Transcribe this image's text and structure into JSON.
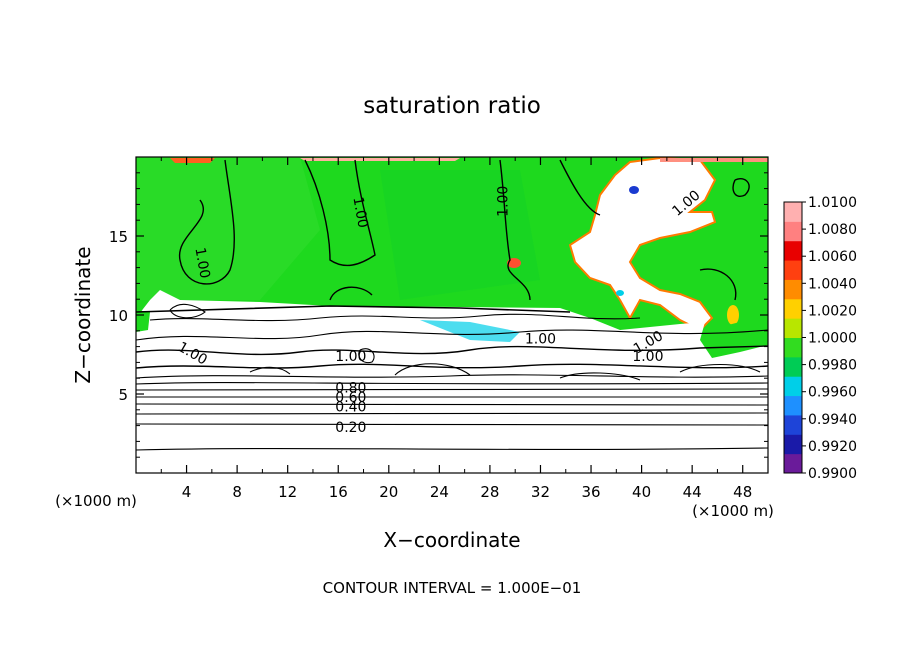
{
  "chart_data": {
    "type": "heatmap",
    "title": "saturation ratio",
    "xlabel": "X−coordinate",
    "ylabel": "Z−coordinate",
    "x_unit_left": "(×1000 m)",
    "x_unit_right": "(×1000 m)",
    "xlim": [
      0,
      50
    ],
    "ylim": [
      0,
      20
    ],
    "x_ticks": [
      4,
      8,
      12,
      16,
      20,
      24,
      28,
      32,
      36,
      40,
      44,
      48
    ],
    "y_ticks": [
      5,
      10,
      15
    ],
    "x_tick_labels": [
      "4",
      "8",
      "12",
      "16",
      "20",
      "24",
      "28",
      "32",
      "36",
      "40",
      "44",
      "48"
    ],
    "y_tick_labels": [
      "5",
      "10",
      "15"
    ],
    "footer": "CONTOUR INTERVAL = 1.000E−01",
    "colorbar": {
      "min": 0.99,
      "max": 1.01,
      "labels": [
        "1.0100",
        "1.0080",
        "1.0060",
        "1.0040",
        "1.0020",
        "1.0000",
        "0.9980",
        "0.9960",
        "0.9940",
        "0.9920",
        "0.9900"
      ],
      "colors": [
        "#6a1b9a",
        "#1a1aa8",
        "#1e44d8",
        "#1e90ff",
        "#00cfe8",
        "#00cc55",
        "#32dc20",
        "#b8e600",
        "#ffd000",
        "#ff8c00",
        "#ff4010",
        "#e80000",
        "#ff8080",
        "#ffb0b0"
      ]
    },
    "contour_labels": [
      {
        "text": "1.00",
        "x": 17.8,
        "z": 16.5,
        "rotate": 80
      },
      {
        "text": "1.00",
        "x": 29.0,
        "z": 17.2,
        "rotate": -90
      },
      {
        "text": "1.00",
        "x": 5.3,
        "z": 13.3,
        "rotate": 80
      },
      {
        "text": "1.00",
        "x": 32.0,
        "z": 8.5,
        "rotate": 0
      },
      {
        "text": "1.00",
        "x": 40.5,
        "z": 8.3,
        "rotate": -30
      },
      {
        "text": "1.00",
        "x": 40.5,
        "z": 7.4,
        "rotate": 0
      },
      {
        "text": "1.00",
        "x": 17.0,
        "z": 7.4,
        "rotate": 0
      },
      {
        "text": "1.00",
        "x": 4.5,
        "z": 7.6,
        "rotate": 30
      },
      {
        "text": "1.00",
        "x": 43.5,
        "z": 17.1,
        "rotate": -40
      },
      {
        "text": "0.80",
        "x": 17.0,
        "z": 5.4,
        "rotate": 0
      },
      {
        "text": "0.60",
        "x": 17.0,
        "z": 4.8,
        "rotate": 0
      },
      {
        "text": "0.40",
        "x": 17.0,
        "z": 4.2,
        "rotate": 0
      },
      {
        "text": "0.20",
        "x": 17.0,
        "z": 2.9,
        "rotate": 0
      }
    ],
    "background_level": 1.0,
    "subsaturated_top_z": 10.5,
    "grid": false
  }
}
